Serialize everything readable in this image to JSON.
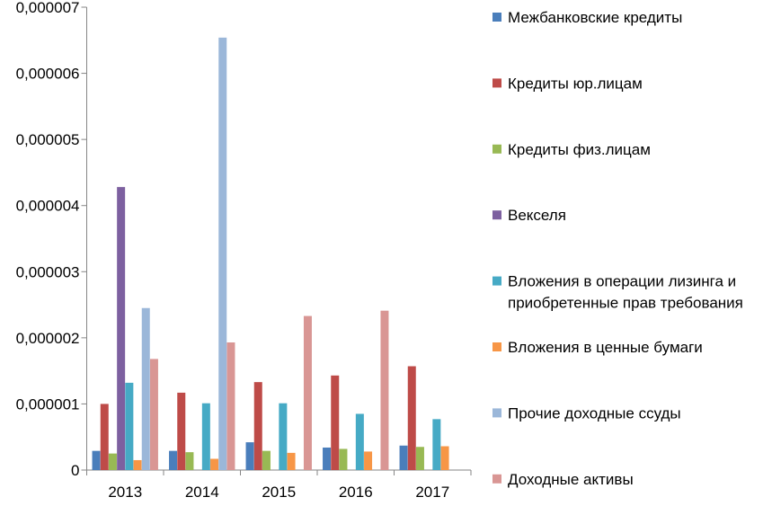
{
  "chart_data": {
    "type": "bar",
    "title": "",
    "xlabel": "",
    "ylabel": "",
    "categories": [
      "2013",
      "2014",
      "2015",
      "2016",
      "2017"
    ],
    "ylim": [
      0,
      7e-06
    ],
    "y_ticks": [
      {
        "value": 0,
        "label": "0"
      },
      {
        "value": 1e-06,
        "label": "0,000001"
      },
      {
        "value": 2e-06,
        "label": "0,000002"
      },
      {
        "value": 3e-06,
        "label": "0,000003"
      },
      {
        "value": 4e-06,
        "label": "0,000004"
      },
      {
        "value": 5e-06,
        "label": "0,000005"
      },
      {
        "value": 6e-06,
        "label": "0,000006"
      },
      {
        "value": 7e-06,
        "label": "0,000007"
      }
    ],
    "grid": false,
    "legend_position": "right",
    "series": [
      {
        "name": "Межбанковские кредиты",
        "color": "#4A7EBB",
        "values": [
          2.9e-07,
          2.9e-07,
          4.2e-07,
          3.4e-07,
          3.7e-07
        ]
      },
      {
        "name": "Кредиты юр.лицам",
        "color": "#BE4B48",
        "values": [
          1e-06,
          1.17e-06,
          1.33e-06,
          1.43e-06,
          1.57e-06
        ]
      },
      {
        "name": "Кредиты физ.лицам",
        "color": "#98B954",
        "values": [
          2.5e-07,
          2.7e-07,
          2.9e-07,
          3.2e-07,
          3.5e-07
        ]
      },
      {
        "name": "Векселя",
        "color": "#7D60A0",
        "values": [
          4.28e-06,
          0,
          0,
          0,
          0
        ]
      },
      {
        "name": "Вложения в операции лизинга и приобретенные прав требования",
        "color": "#46AAC5",
        "values": [
          1.32e-06,
          1.01e-06,
          1.01e-06,
          8.5e-07,
          7.7e-07
        ]
      },
      {
        "name": "Вложения в ценные бумаги",
        "color": "#F79646",
        "values": [
          1.5e-07,
          1.7e-07,
          2.6e-07,
          2.8e-07,
          3.6e-07
        ]
      },
      {
        "name": "Прочие доходные ссуды",
        "color": "#9BB7D9",
        "values": [
          2.45e-06,
          6.54e-06,
          0,
          0,
          0
        ]
      },
      {
        "name": "Доходные активы",
        "color": "#D99694",
        "values": [
          1.68e-06,
          1.93e-06,
          2.33e-06,
          2.41e-06,
          0
        ]
      }
    ]
  }
}
